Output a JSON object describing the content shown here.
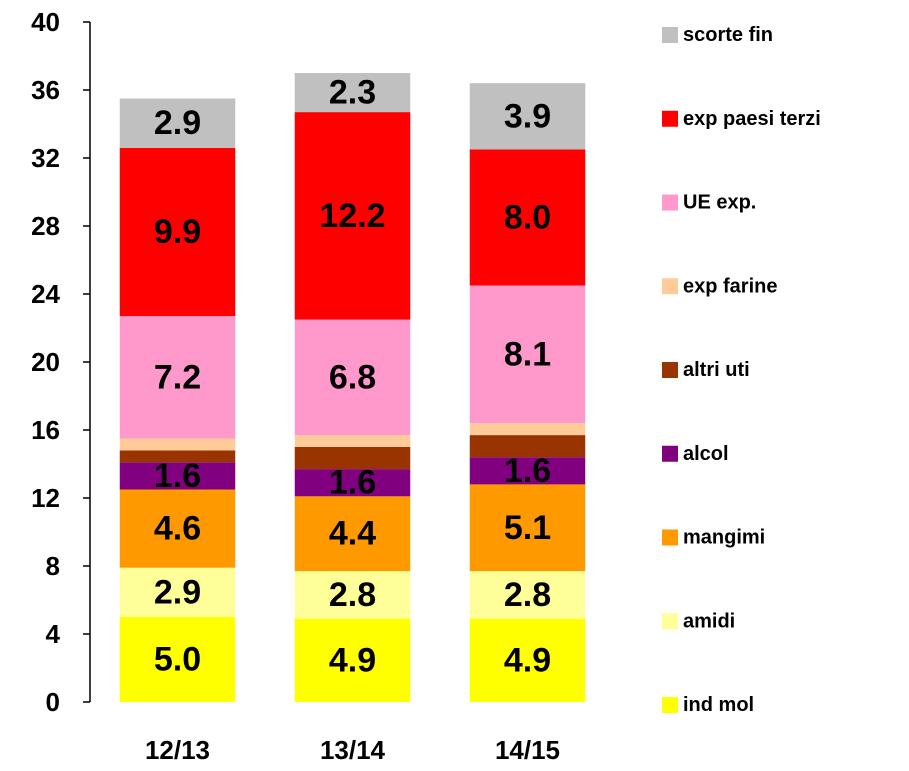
{
  "chart_data": {
    "type": "stacked_bar",
    "categories": [
      "12/13",
      "13/14",
      "14/15"
    ],
    "ylim": [
      0,
      40
    ],
    "yticks": [
      0,
      4,
      8,
      12,
      16,
      20,
      24,
      28,
      32,
      36,
      40
    ],
    "series": [
      {
        "name": "ind mol",
        "color": "#ffff00",
        "label_color": "#000000",
        "values": [
          5.0,
          4.9,
          4.9
        ],
        "value_labels": [
          "5.0",
          "4.9",
          "4.9"
        ]
      },
      {
        "name": "amidi",
        "color": "#ffff99",
        "label_color": "#000000",
        "values": [
          2.9,
          2.8,
          2.8
        ],
        "value_labels": [
          "2.9",
          "2.8",
          "2.8"
        ]
      },
      {
        "name": "mangimi",
        "color": "#ff9900",
        "label_color": "#000000",
        "values": [
          4.6,
          4.4,
          5.1
        ],
        "value_labels": [
          "4.6",
          "4.4",
          "5.1"
        ]
      },
      {
        "name": "alcol",
        "color": "#800080",
        "label_color": "#ffffff",
        "values": [
          1.6,
          1.6,
          1.6
        ],
        "value_labels": [
          "1.6",
          "1.6",
          "1.6"
        ]
      },
      {
        "name": "altri uti",
        "color": "#993300",
        "values": [
          0.7,
          1.3,
          1.3
        ]
      },
      {
        "name": "exp farine",
        "color": "#ffcc99",
        "values": [
          0.7,
          0.7,
          0.7
        ]
      },
      {
        "name": "UE exp.",
        "color": "#ff99cc",
        "label_color": "#000000",
        "values": [
          7.2,
          6.8,
          8.1
        ],
        "value_labels": [
          "7.2",
          "6.8",
          "8.1"
        ]
      },
      {
        "name": "exp paesi terzi",
        "color": "#ff0000",
        "label_color": "#ffffff",
        "values": [
          9.9,
          12.2,
          8.0
        ],
        "value_labels": [
          "9.9",
          "12.2",
          "8.0"
        ]
      },
      {
        "name": "scorte fin",
        "color": "#c0c0c0",
        "label_color": "#000000",
        "values": [
          2.9,
          2.3,
          3.9
        ],
        "value_labels": [
          "2.9",
          "2.3",
          "3.9"
        ]
      }
    ]
  }
}
